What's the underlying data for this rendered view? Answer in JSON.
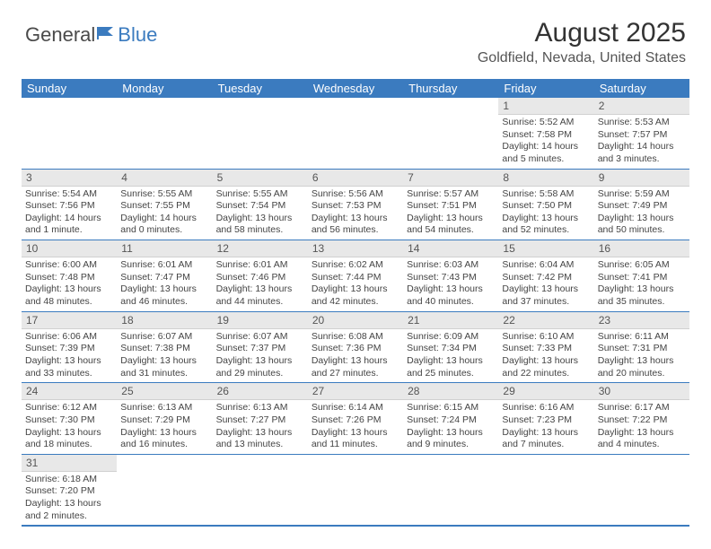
{
  "brand": {
    "part1": "General",
    "part2": "Blue"
  },
  "title": "August 2025",
  "location": "Goldfield, Nevada, United States",
  "colors": {
    "header_bg": "#3b7bbf",
    "header_text": "#ffffff",
    "daynum_bg": "#e8e8e8",
    "border": "#3b7bbf",
    "text": "#333333"
  },
  "weekdays": [
    "Sunday",
    "Monday",
    "Tuesday",
    "Wednesday",
    "Thursday",
    "Friday",
    "Saturday"
  ],
  "first_weekday_index": 5,
  "days": [
    {
      "n": 1,
      "sr": "5:52 AM",
      "ss": "7:58 PM",
      "dl": "14 hours and 5 minutes."
    },
    {
      "n": 2,
      "sr": "5:53 AM",
      "ss": "7:57 PM",
      "dl": "14 hours and 3 minutes."
    },
    {
      "n": 3,
      "sr": "5:54 AM",
      "ss": "7:56 PM",
      "dl": "14 hours and 1 minute."
    },
    {
      "n": 4,
      "sr": "5:55 AM",
      "ss": "7:55 PM",
      "dl": "14 hours and 0 minutes."
    },
    {
      "n": 5,
      "sr": "5:55 AM",
      "ss": "7:54 PM",
      "dl": "13 hours and 58 minutes."
    },
    {
      "n": 6,
      "sr": "5:56 AM",
      "ss": "7:53 PM",
      "dl": "13 hours and 56 minutes."
    },
    {
      "n": 7,
      "sr": "5:57 AM",
      "ss": "7:51 PM",
      "dl": "13 hours and 54 minutes."
    },
    {
      "n": 8,
      "sr": "5:58 AM",
      "ss": "7:50 PM",
      "dl": "13 hours and 52 minutes."
    },
    {
      "n": 9,
      "sr": "5:59 AM",
      "ss": "7:49 PM",
      "dl": "13 hours and 50 minutes."
    },
    {
      "n": 10,
      "sr": "6:00 AM",
      "ss": "7:48 PM",
      "dl": "13 hours and 48 minutes."
    },
    {
      "n": 11,
      "sr": "6:01 AM",
      "ss": "7:47 PM",
      "dl": "13 hours and 46 minutes."
    },
    {
      "n": 12,
      "sr": "6:01 AM",
      "ss": "7:46 PM",
      "dl": "13 hours and 44 minutes."
    },
    {
      "n": 13,
      "sr": "6:02 AM",
      "ss": "7:44 PM",
      "dl": "13 hours and 42 minutes."
    },
    {
      "n": 14,
      "sr": "6:03 AM",
      "ss": "7:43 PM",
      "dl": "13 hours and 40 minutes."
    },
    {
      "n": 15,
      "sr": "6:04 AM",
      "ss": "7:42 PM",
      "dl": "13 hours and 37 minutes."
    },
    {
      "n": 16,
      "sr": "6:05 AM",
      "ss": "7:41 PM",
      "dl": "13 hours and 35 minutes."
    },
    {
      "n": 17,
      "sr": "6:06 AM",
      "ss": "7:39 PM",
      "dl": "13 hours and 33 minutes."
    },
    {
      "n": 18,
      "sr": "6:07 AM",
      "ss": "7:38 PM",
      "dl": "13 hours and 31 minutes."
    },
    {
      "n": 19,
      "sr": "6:07 AM",
      "ss": "7:37 PM",
      "dl": "13 hours and 29 minutes."
    },
    {
      "n": 20,
      "sr": "6:08 AM",
      "ss": "7:36 PM",
      "dl": "13 hours and 27 minutes."
    },
    {
      "n": 21,
      "sr": "6:09 AM",
      "ss": "7:34 PM",
      "dl": "13 hours and 25 minutes."
    },
    {
      "n": 22,
      "sr": "6:10 AM",
      "ss": "7:33 PM",
      "dl": "13 hours and 22 minutes."
    },
    {
      "n": 23,
      "sr": "6:11 AM",
      "ss": "7:31 PM",
      "dl": "13 hours and 20 minutes."
    },
    {
      "n": 24,
      "sr": "6:12 AM",
      "ss": "7:30 PM",
      "dl": "13 hours and 18 minutes."
    },
    {
      "n": 25,
      "sr": "6:13 AM",
      "ss": "7:29 PM",
      "dl": "13 hours and 16 minutes."
    },
    {
      "n": 26,
      "sr": "6:13 AM",
      "ss": "7:27 PM",
      "dl": "13 hours and 13 minutes."
    },
    {
      "n": 27,
      "sr": "6:14 AM",
      "ss": "7:26 PM",
      "dl": "13 hours and 11 minutes."
    },
    {
      "n": 28,
      "sr": "6:15 AM",
      "ss": "7:24 PM",
      "dl": "13 hours and 9 minutes."
    },
    {
      "n": 29,
      "sr": "6:16 AM",
      "ss": "7:23 PM",
      "dl": "13 hours and 7 minutes."
    },
    {
      "n": 30,
      "sr": "6:17 AM",
      "ss": "7:22 PM",
      "dl": "13 hours and 4 minutes."
    },
    {
      "n": 31,
      "sr": "6:18 AM",
      "ss": "7:20 PM",
      "dl": "13 hours and 2 minutes."
    }
  ],
  "labels": {
    "sunrise": "Sunrise:",
    "sunset": "Sunset:",
    "daylight": "Daylight:"
  }
}
